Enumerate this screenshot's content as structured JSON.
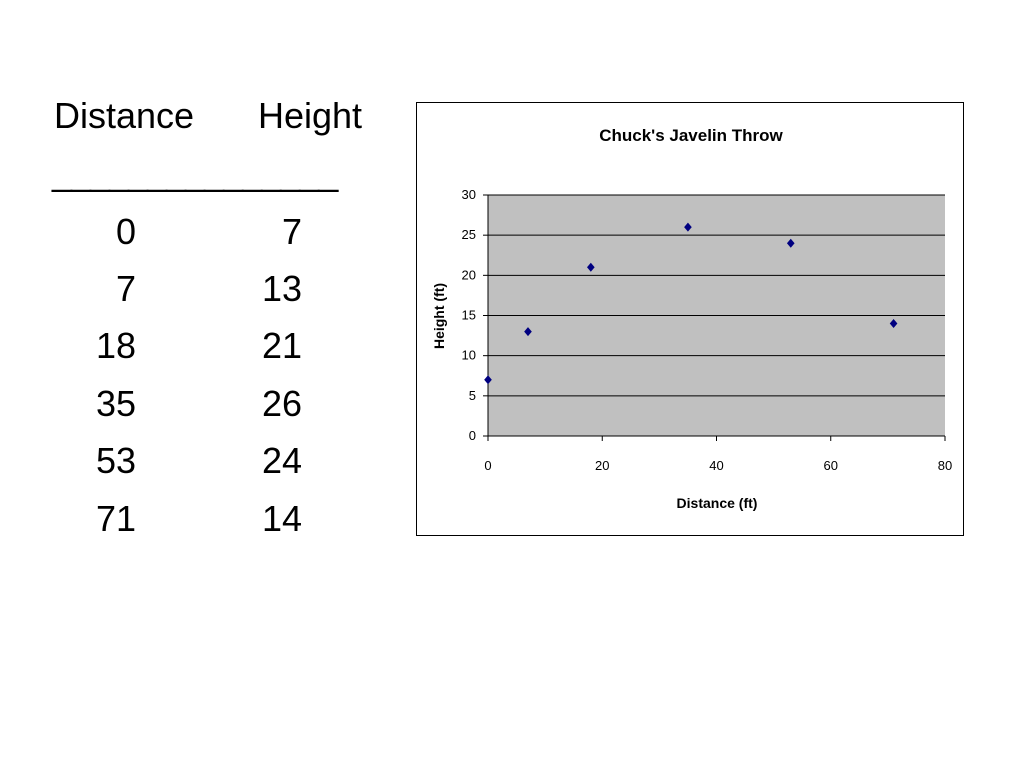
{
  "table": {
    "headers": {
      "distance": "Distance",
      "height": "Height"
    },
    "separator": "_______________",
    "rows": [
      {
        "distance": "0",
        "height": "7"
      },
      {
        "distance": "7",
        "height": "13"
      },
      {
        "distance": "18",
        "height": "21"
      },
      {
        "distance": "35",
        "height": "26"
      },
      {
        "distance": "53",
        "height": "24"
      },
      {
        "distance": "71",
        "height": "14"
      }
    ]
  },
  "chart_data": {
    "type": "scatter",
    "title": "Chuck's Javelin Throw",
    "xlabel": "Distance (ft)",
    "ylabel": "Height (ft)",
    "x": [
      0,
      7,
      18,
      35,
      53,
      71
    ],
    "y": [
      7,
      13,
      21,
      26,
      24,
      14
    ],
    "xlim": [
      0,
      80
    ],
    "ylim": [
      0,
      30
    ],
    "xticks": [
      "0",
      "20",
      "40",
      "60",
      "80"
    ],
    "yticks": [
      "0",
      "5",
      "10",
      "15",
      "20",
      "25",
      "30"
    ],
    "grid": "horizontal",
    "legend": "none",
    "colors": {
      "marker": "#000080",
      "plot_background": "#c0c0c0",
      "gridline": "#000000"
    },
    "marker": "diamond"
  }
}
